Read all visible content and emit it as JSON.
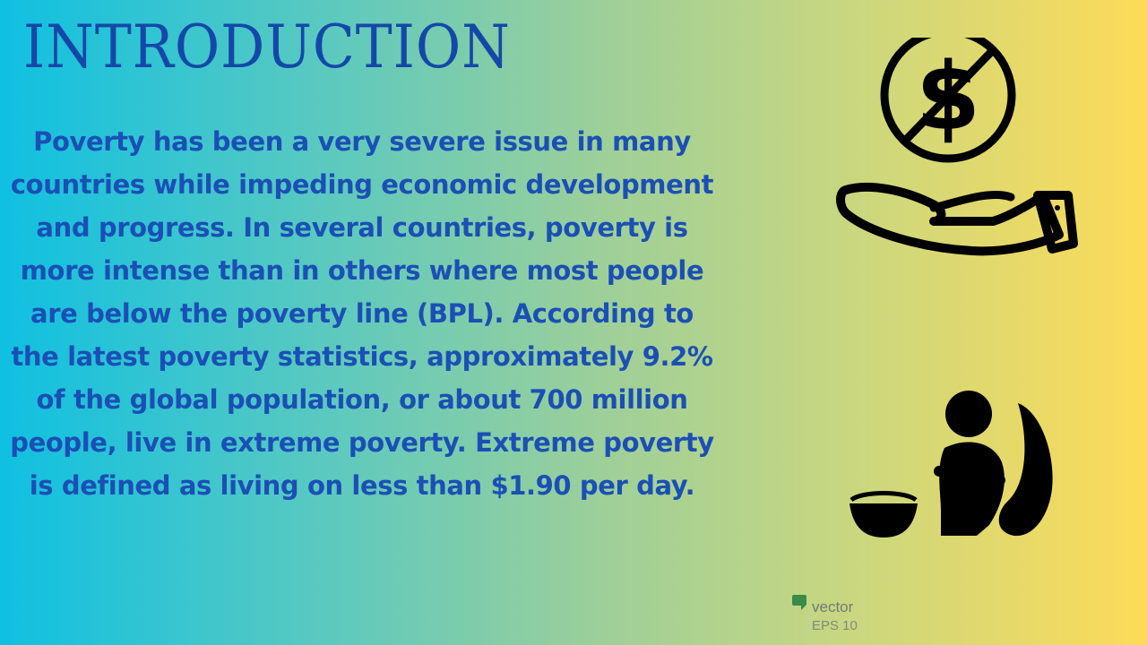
{
  "title": "INTRODUCTION",
  "body": "Poverty has been a very severe issue in many countries while impeding economic development and progress. In several countries, poverty is more intense than in others where most people are below the poverty line (BPL). According to the latest poverty statistics, approximately 9.2% of the global population, or about 700 million people, live in extreme poverty. Extreme poverty is defined as living on less than $1.90 per day.",
  "icons": {
    "top": "no-money-hand-icon",
    "bottom": "beggar-with-bowl-icon"
  },
  "watermark": {
    "word": "vector",
    "format": "EPS 10"
  },
  "colors": {
    "gradient_left": "#0fc0e2",
    "gradient_right": "#fddb58",
    "text": "#1b4fb5",
    "title": "#1448a8",
    "icon": "#000000"
  }
}
